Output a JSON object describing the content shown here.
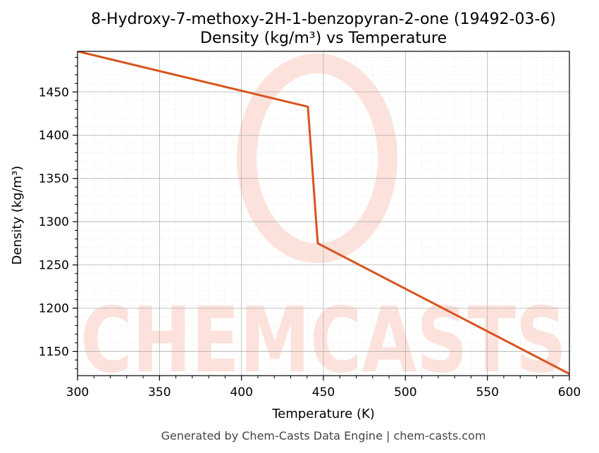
{
  "chart_data": {
    "type": "line",
    "title_line1": "8-Hydroxy-7-methoxy-2H-1-benzopyran-2-one (19492-03-6)",
    "title_line2": "Density (kg/m³) vs Temperature",
    "xlabel": "Temperature (K)",
    "ylabel": "Density (kg/m³)",
    "xlim": [
      300,
      600
    ],
    "ylim": [
      1122,
      1497
    ],
    "x_ticks": [
      300,
      350,
      400,
      450,
      500,
      550,
      600
    ],
    "y_ticks": [
      1150,
      1200,
      1250,
      1300,
      1350,
      1400,
      1450
    ],
    "grid": true,
    "series": [
      {
        "color": "#d9541e",
        "points": [
          [
            300,
            1497
          ],
          [
            440.5,
            1433
          ],
          [
            446.5,
            1275
          ],
          [
            600,
            1124
          ]
        ]
      }
    ]
  },
  "watermark": {
    "text": "CHEMCASTS",
    "color": "#fde2dc"
  },
  "footer": "Generated by Chem-Casts Data Engine | chem-casts.com"
}
